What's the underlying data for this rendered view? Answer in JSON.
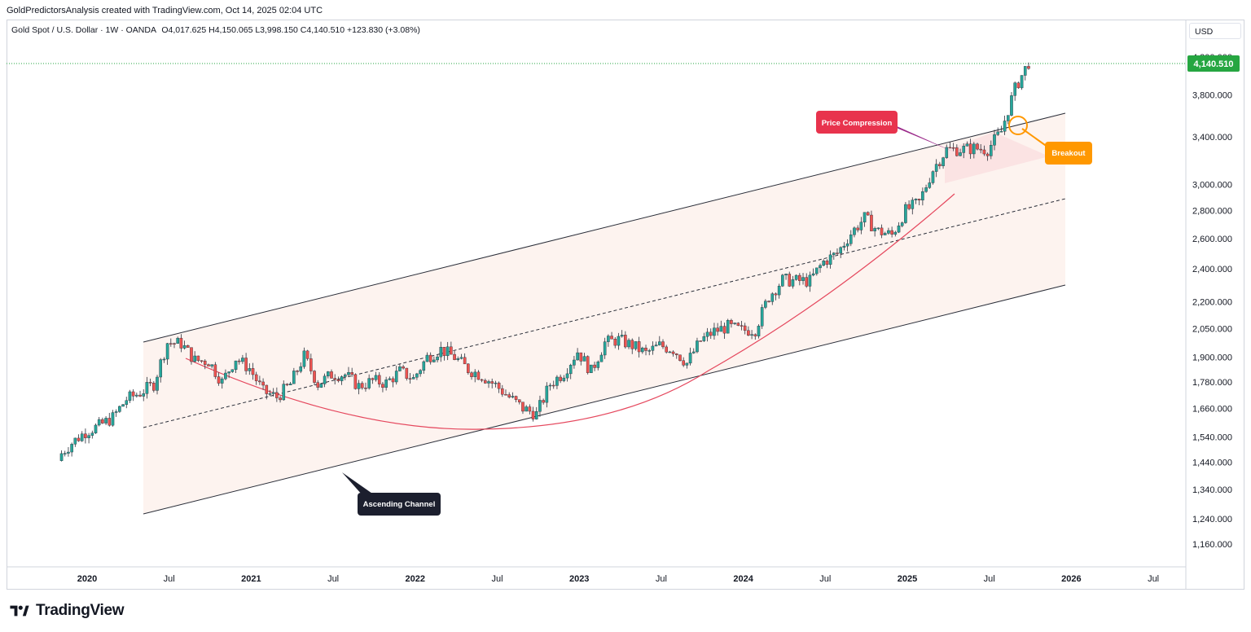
{
  "header": {
    "attribution": "GoldPredictorsAnalysis created with TradingView.com, Oct 14, 2025 02:04 UTC",
    "symbol": "Gold Spot / U.S. Dollar · 1W · OANDA",
    "ohlc": "O4,017.625  H4,150.065  L3,998.150  C4,140.510  +123.830 (+3.08%)"
  },
  "currency": "USD",
  "brand": "TradingView",
  "colors": {
    "up": "#26a69a",
    "down": "#ef5350",
    "channel_fill": "#fdf3ef",
    "compression_fill": "#fbe3e3",
    "curve": "#e5475d",
    "label_dark": "#1c1f2e",
    "label_red": "#e8334d",
    "label_orange": "#ff9800",
    "price_badge": "#26a641"
  },
  "chart_data": {
    "type": "candlestick",
    "timeframe": "1W",
    "x_ticks": [
      "2020",
      "Jul",
      "2021",
      "Jul",
      "2022",
      "Jul",
      "2023",
      "Jul",
      "2024",
      "Jul",
      "2025",
      "Jul",
      "2026",
      "Jul"
    ],
    "y_ticks": [
      "4,200.000",
      "3,800.000",
      "3,400.000",
      "3,000.000",
      "2,800.000",
      "2,600.000",
      "2,400.000",
      "2,200.000",
      "2,050.000",
      "1,900.000",
      "1,780.000",
      "1,660.000",
      "1,540.000",
      "1,440.000",
      "1,340.000",
      "1,240.000",
      "1,160.000"
    ],
    "y_scale": "log",
    "ylim": [
      1100,
      4400
    ],
    "last_price": "4,140.510",
    "series": [
      {
        "date": "2019-11",
        "close": 1460
      },
      {
        "date": "2019-12",
        "close": 1515
      },
      {
        "date": "2020-01",
        "close": 1560
      },
      {
        "date": "2020-02",
        "close": 1585
      },
      {
        "date": "2020-03",
        "close": 1620
      },
      {
        "date": "2020-04",
        "close": 1700
      },
      {
        "date": "2020-05",
        "close": 1730
      },
      {
        "date": "2020-06",
        "close": 1770
      },
      {
        "date": "2020-07",
        "close": 1975
      },
      {
        "date": "2020-08",
        "close": 1970
      },
      {
        "date": "2020-09",
        "close": 1885
      },
      {
        "date": "2020-10",
        "close": 1880
      },
      {
        "date": "2020-11",
        "close": 1780
      },
      {
        "date": "2020-12",
        "close": 1895
      },
      {
        "date": "2021-01",
        "close": 1845
      },
      {
        "date": "2021-02",
        "close": 1735
      },
      {
        "date": "2021-03",
        "close": 1710
      },
      {
        "date": "2021-04",
        "close": 1770
      },
      {
        "date": "2021-05",
        "close": 1905
      },
      {
        "date": "2021-06",
        "close": 1770
      },
      {
        "date": "2021-07",
        "close": 1815
      },
      {
        "date": "2021-08",
        "close": 1815
      },
      {
        "date": "2021-09",
        "close": 1760
      },
      {
        "date": "2021-10",
        "close": 1785
      },
      {
        "date": "2021-11",
        "close": 1775
      },
      {
        "date": "2021-12",
        "close": 1830
      },
      {
        "date": "2022-01",
        "close": 1795
      },
      {
        "date": "2022-02",
        "close": 1900
      },
      {
        "date": "2022-03",
        "close": 1940
      },
      {
        "date": "2022-04",
        "close": 1900
      },
      {
        "date": "2022-05",
        "close": 1840
      },
      {
        "date": "2022-06",
        "close": 1810
      },
      {
        "date": "2022-07",
        "close": 1765
      },
      {
        "date": "2022-08",
        "close": 1710
      },
      {
        "date": "2022-09",
        "close": 1660
      },
      {
        "date": "2022-10",
        "close": 1635
      },
      {
        "date": "2022-11",
        "close": 1770
      },
      {
        "date": "2022-12",
        "close": 1825
      },
      {
        "date": "2023-01",
        "close": 1930
      },
      {
        "date": "2023-02",
        "close": 1830
      },
      {
        "date": "2023-03",
        "close": 1975
      },
      {
        "date": "2023-04",
        "close": 1990
      },
      {
        "date": "2023-05",
        "close": 1960
      },
      {
        "date": "2023-06",
        "close": 1920
      },
      {
        "date": "2023-07",
        "close": 1960
      },
      {
        "date": "2023-08",
        "close": 1940
      },
      {
        "date": "2023-09",
        "close": 1870
      },
      {
        "date": "2023-10",
        "close": 1985
      },
      {
        "date": "2023-11",
        "close": 2035
      },
      {
        "date": "2023-12",
        "close": 2060
      },
      {
        "date": "2024-01",
        "close": 2040
      },
      {
        "date": "2024-02",
        "close": 2045
      },
      {
        "date": "2024-03",
        "close": 2230
      },
      {
        "date": "2024-04",
        "close": 2330
      },
      {
        "date": "2024-05",
        "close": 2325
      },
      {
        "date": "2024-06",
        "close": 2325
      },
      {
        "date": "2024-07",
        "close": 2445
      },
      {
        "date": "2024-08",
        "close": 2500
      },
      {
        "date": "2024-09",
        "close": 2635
      },
      {
        "date": "2024-10",
        "close": 2745
      },
      {
        "date": "2024-11",
        "close": 2650
      },
      {
        "date": "2024-12",
        "close": 2625
      },
      {
        "date": "2025-01",
        "close": 2800
      },
      {
        "date": "2025-02",
        "close": 2860
      },
      {
        "date": "2025-03",
        "close": 3120
      },
      {
        "date": "2025-04",
        "close": 3290
      },
      {
        "date": "2025-05",
        "close": 3290
      },
      {
        "date": "2025-06",
        "close": 3300
      },
      {
        "date": "2025-07",
        "close": 3290
      },
      {
        "date": "2025-08",
        "close": 3450
      },
      {
        "date": "2025-09",
        "close": 3860
      },
      {
        "date": "2025-10",
        "close": 4140
      }
    ],
    "annotations": [
      {
        "text": "Price Compression",
        "style": "red"
      },
      {
        "text": "Breakout",
        "style": "orange"
      },
      {
        "text": "Ascending Channel",
        "style": "dark"
      }
    ]
  }
}
